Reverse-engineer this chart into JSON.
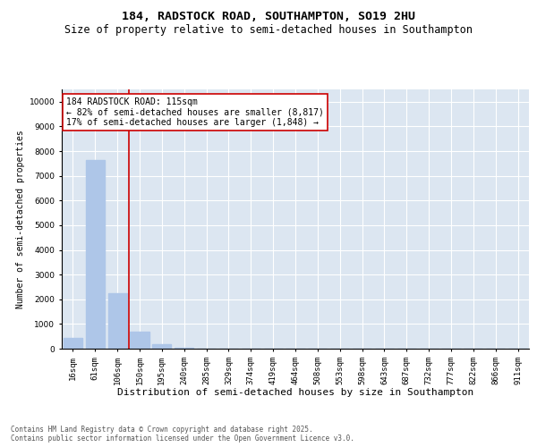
{
  "title": "184, RADSTOCK ROAD, SOUTHAMPTON, SO19 2HU",
  "subtitle": "Size of property relative to semi-detached houses in Southampton",
  "xlabel": "Distribution of semi-detached houses by size in Southampton",
  "ylabel": "Number of semi-detached properties",
  "categories": [
    "16sqm",
    "61sqm",
    "106sqm",
    "150sqm",
    "195sqm",
    "240sqm",
    "285sqm",
    "329sqm",
    "374sqm",
    "419sqm",
    "464sqm",
    "508sqm",
    "553sqm",
    "598sqm",
    "643sqm",
    "687sqm",
    "732sqm",
    "777sqm",
    "822sqm",
    "866sqm",
    "911sqm"
  ],
  "values": [
    430,
    7650,
    2250,
    680,
    180,
    50,
    10,
    5,
    3,
    2,
    1,
    1,
    1,
    0,
    0,
    0,
    0,
    0,
    0,
    0,
    0
  ],
  "bar_color": "#aec6e8",
  "vline_x": 2.5,
  "vline_color": "#cc0000",
  "annotation_text": "184 RADSTOCK ROAD: 115sqm\n← 82% of semi-detached houses are smaller (8,817)\n17% of semi-detached houses are larger (1,848) →",
  "annotation_box_color": "#cc0000",
  "background_color": "#dce6f1",
  "ylim": [
    0,
    10500
  ],
  "yticks": [
    0,
    1000,
    2000,
    3000,
    4000,
    5000,
    6000,
    7000,
    8000,
    9000,
    10000
  ],
  "footer": "Contains HM Land Registry data © Crown copyright and database right 2025.\nContains public sector information licensed under the Open Government Licence v3.0.",
  "title_fontsize": 9.5,
  "subtitle_fontsize": 8.5,
  "xlabel_fontsize": 8,
  "ylabel_fontsize": 7,
  "tick_fontsize": 6.5,
  "annotation_fontsize": 7,
  "footer_fontsize": 5.5
}
